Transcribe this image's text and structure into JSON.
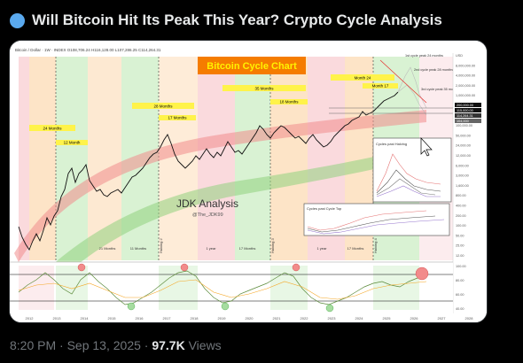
{
  "post": {
    "title": "Will Bitcoin Hit Its Peak This Year? Crypto Cycle Analysis",
    "time": "8:20 PM",
    "sep": "·",
    "date": "Sep 13, 2025",
    "sep2": "·",
    "views": "97.7K",
    "views_label": "Views"
  },
  "chart": {
    "header_text": "Bitcoin / Dollar · 1W · INDEX  O108,706.24  H116,128.00  L107,286.25  C114,264.31",
    "title": "Bitcoin Cycle Chart",
    "watermark": "JDK Analysis",
    "watermark_handle": "@The_JDK99",
    "months_labels": [
      "24 Months",
      "12 Month",
      "28 Months",
      "17 Months",
      "35 Months",
      "18 Months",
      "Month 24",
      "Month 17"
    ],
    "bottom_labels": [
      "21 Months",
      "11 Months",
      "1 year",
      "17 Months",
      "1 year",
      "17 Months"
    ],
    "halving_labels": [
      "Halving 2",
      "Halving 3",
      "Halving 4"
    ],
    "inset1_title": "Cycles past Halving",
    "inset2_title": "Cycles past Cycle Top",
    "right_notes": [
      "1st cycle peak 24 months",
      "2nd cycle peak 28 months",
      "3rd cycle peak 35 months"
    ],
    "x_ticks": [
      "2012",
      "2013",
      "2014",
      "2015",
      "2016",
      "2017",
      "2018",
      "2019",
      "2020",
      "2021",
      "2022",
      "2023",
      "2024",
      "2025",
      "2026",
      "2027",
      "2028"
    ],
    "y_ticks": [
      "USD",
      "8,000,000.00",
      "4,000,000.00",
      "2,000,000.00",
      "1,000,000.00",
      "500,000.00",
      "250,000.00",
      "100,000.00",
      "50,000.00",
      "24,000.00",
      "12,000.00",
      "6,000.00",
      "3,000.00",
      "1,600.00",
      "800.00",
      "400.00",
      "200.00",
      "100.00",
      "50.00",
      "25.00",
      "12.00"
    ],
    "price_tags": [
      "200,000.00",
      "115,000.00",
      "114,264.31",
      "104,000"
    ],
    "osc_ticks": [
      "100.00",
      "80.00",
      "60.00",
      "40.00"
    ],
    "colors": {
      "orange_zone": "#fde4c7",
      "green_zone": "#d9f2d3",
      "pink_zone": "#fadadd",
      "price_line": "#111111",
      "title_bg": "#f57c00",
      "title_fg": "#fff200",
      "yellow_label": "#fff34a"
    }
  }
}
